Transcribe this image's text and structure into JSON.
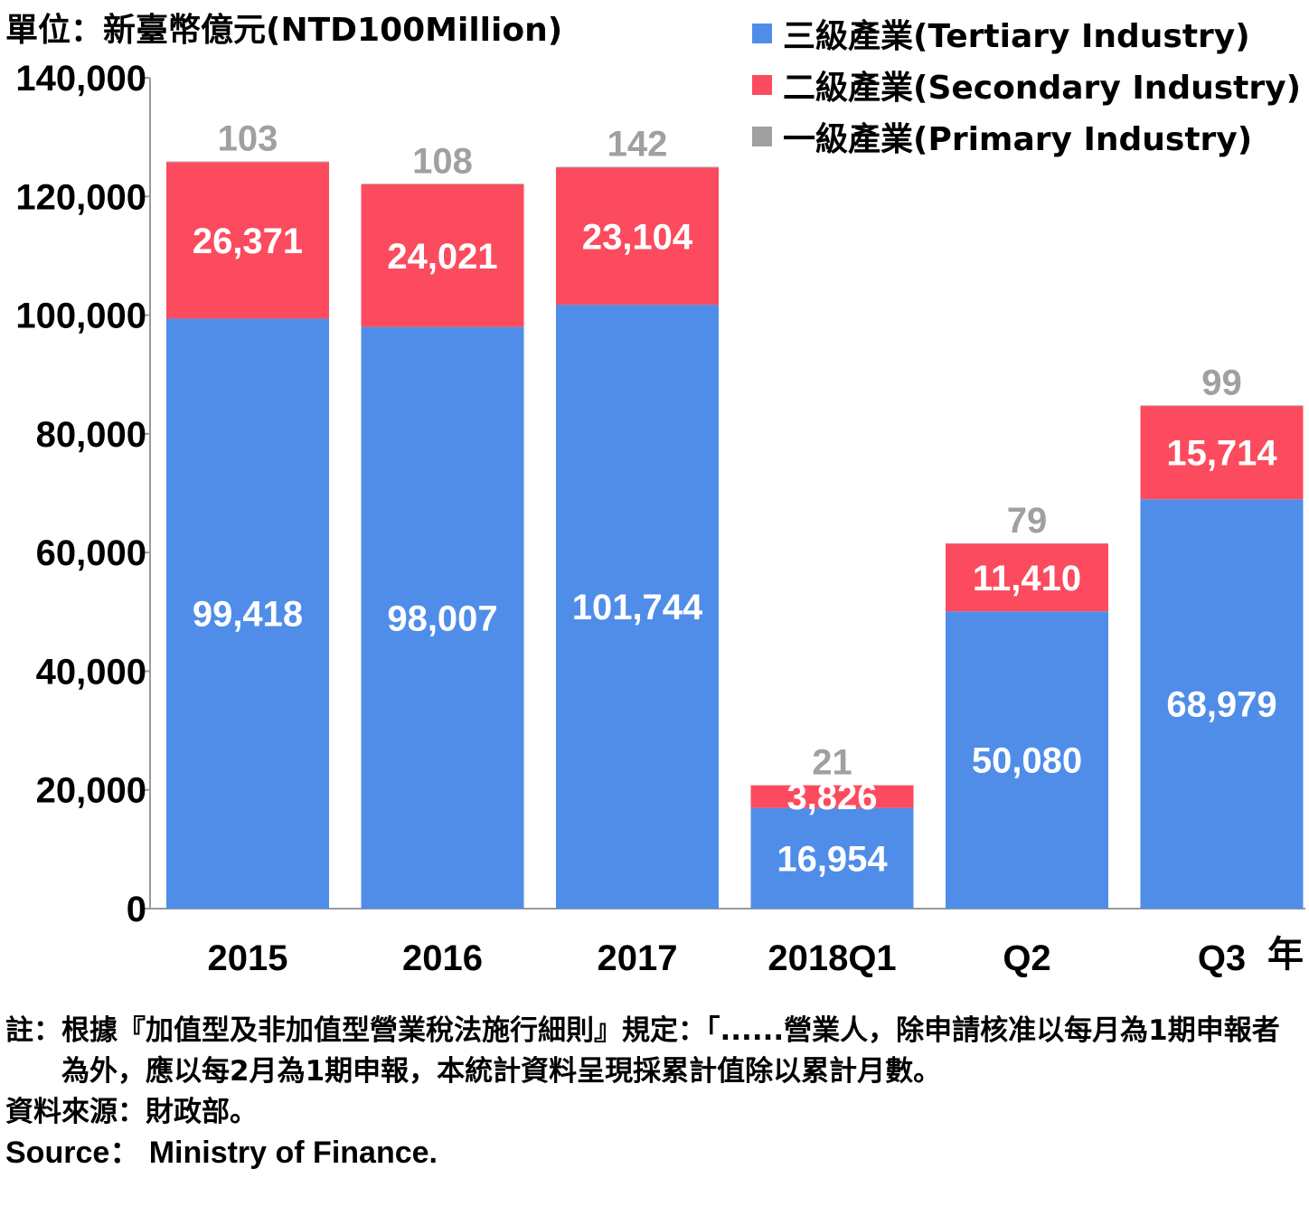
{
  "unit_label": "單位：新臺幣億元(NTD100Million)",
  "x_axis_suffix": "年",
  "colors": {
    "tertiary": "#4f8de9",
    "secondary": "#fc4b5e",
    "primary": "#a0a0a0",
    "secondary_label": "#ffffff",
    "tertiary_label": "#ffffff",
    "primary_label": "#a0a0a0"
  },
  "legend": [
    {
      "label": "三級產業(Tertiary Industry)",
      "color": "#4f8de9"
    },
    {
      "label": "二級產業(Secondary Industry)",
      "color": "#fc4b5e"
    },
    {
      "label": "一級產業(Primary Industry)",
      "color": "#a0a0a0"
    }
  ],
  "chart_data": {
    "type": "bar",
    "stacked": true,
    "categories": [
      "2015",
      "2016",
      "2017",
      "2018Q1",
      "Q2",
      "Q3"
    ],
    "series": [
      {
        "name": "三級產業(Tertiary Industry)",
        "values": [
          99418,
          98007,
          101744,
          16954,
          50080,
          68979
        ],
        "labels": [
          "99,418",
          "98,007",
          "101,744",
          "16,954",
          "50,080",
          "68,979"
        ]
      },
      {
        "name": "二級產業(Secondary Industry)",
        "values": [
          26371,
          24021,
          23104,
          3826,
          11410,
          15714
        ],
        "labels": [
          "26,371",
          "24,021",
          "23,104",
          "3,826",
          "11,410",
          "15,714"
        ]
      },
      {
        "name": "一級產業(Primary Industry)",
        "values": [
          103,
          108,
          142,
          21,
          79,
          99
        ],
        "labels": [
          "103",
          "108",
          "142",
          "21",
          "79",
          "99"
        ]
      }
    ],
    "ylim": [
      0,
      140000
    ],
    "yticks": [
      0,
      20000,
      40000,
      60000,
      80000,
      100000,
      120000,
      140000
    ],
    "ytick_labels": [
      "0",
      "20,000",
      "40,000",
      "60,000",
      "80,000",
      "100,000",
      "120,000",
      "140,000"
    ],
    "grid": false,
    "legend_position": "top-right"
  },
  "notes": {
    "note_label": "註：",
    "note_text": "根據『加值型及非加值型營業稅法施行細則』規定：「......營業人，除申請核准以每月為1期申報者為外，應以每2月為1期申報，本統計資料呈現採累計值除以累計月數。",
    "source_zh": "資料來源：財政部。",
    "source_en": "Source： Ministry of Finance."
  }
}
